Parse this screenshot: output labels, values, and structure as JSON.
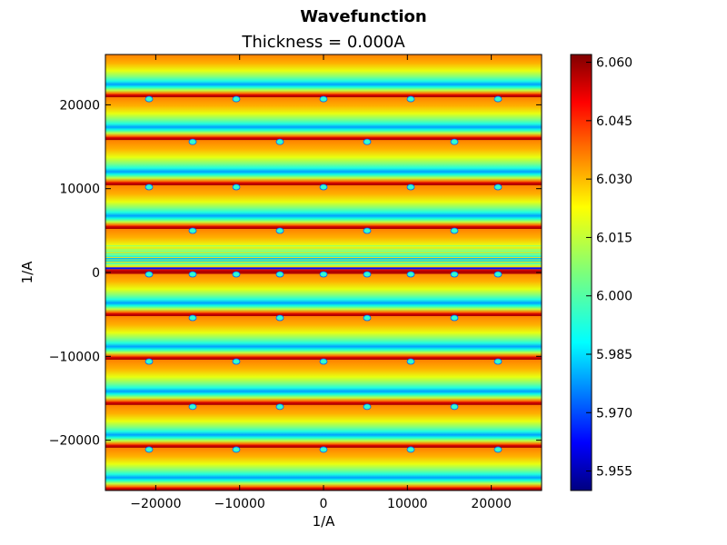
{
  "chart_data": {
    "type": "heatmap",
    "suptitle": "Wavefunction",
    "title": "Thickness = 0.000A",
    "xlabel": "1/A",
    "ylabel": "1/A",
    "xlim": [
      -26000,
      26000
    ],
    "ylim": [
      -26000,
      26000
    ],
    "xticks": [
      -20000,
      -10000,
      0,
      10000,
      20000
    ],
    "xtick_labels": [
      "−20000",
      "−10000",
      "0",
      "10000",
      "20000"
    ],
    "yticks": [
      -20000,
      -10000,
      0,
      10000,
      20000
    ],
    "ytick_labels": [
      "−20000",
      "−10000",
      "0",
      "10000",
      "20000"
    ],
    "colormap": "jet",
    "colorbar": {
      "range": [
        5.95,
        6.062
      ],
      "ticks": [
        5.955,
        5.97,
        5.985,
        6.0,
        6.015,
        6.03,
        6.045,
        6.06
      ],
      "tick_labels": [
        "5.955",
        "5.970",
        "5.985",
        "6.000",
        "6.015",
        "6.030",
        "6.045",
        "6.060"
      ]
    },
    "band_centers": [
      -26000,
      -20900,
      -15800,
      -10400,
      -5200,
      0,
      5200,
      10400,
      15800,
      20900,
      26000
    ],
    "spot_x": [
      -20800,
      -15600,
      -10400,
      -5200,
      0,
      5200,
      10400,
      15600,
      20800
    ]
  }
}
